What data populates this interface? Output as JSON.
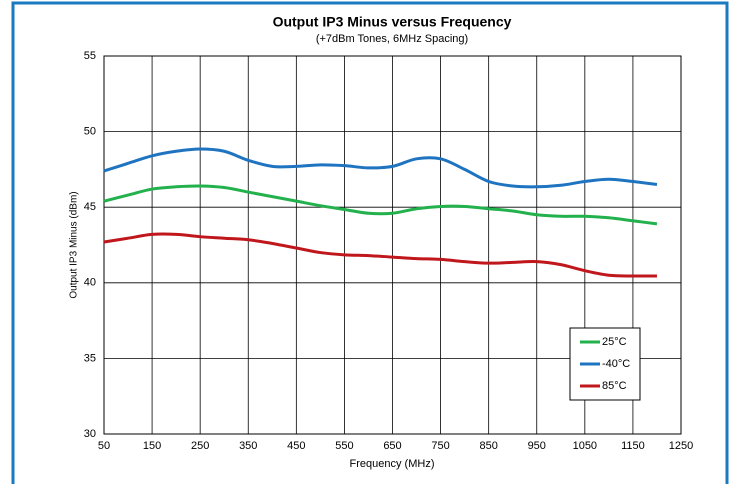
{
  "chart_data": {
    "type": "line",
    "title": "Output IP3 Minus versus Frequency",
    "subtitle": "(+7dBm Tones, 6MHz Spacing)",
    "x_label": "Frequency (MHz)",
    "y_label": "Output IP3 Minus (dBm)",
    "x": [
      50,
      100,
      150,
      200,
      250,
      300,
      350,
      400,
      450,
      500,
      550,
      600,
      650,
      700,
      750,
      800,
      850,
      900,
      950,
      1000,
      1050,
      1100,
      1150,
      1200
    ],
    "series": [
      {
        "name": "25°C",
        "color": "#22b14c",
        "values": [
          45.4,
          45.8,
          46.2,
          46.35,
          46.4,
          46.3,
          46.0,
          45.7,
          45.4,
          45.1,
          44.85,
          44.6,
          44.6,
          44.9,
          45.05,
          45.05,
          44.9,
          44.75,
          44.5,
          44.4,
          44.4,
          44.3,
          44.1,
          43.9
        ]
      },
      {
        "name": "-40°C",
        "color": "#1f74c1",
        "values": [
          47.4,
          47.9,
          48.4,
          48.7,
          48.85,
          48.7,
          48.1,
          47.7,
          47.7,
          47.8,
          47.75,
          47.6,
          47.7,
          48.2,
          48.2,
          47.5,
          46.7,
          46.4,
          46.35,
          46.45,
          46.7,
          46.85,
          46.7,
          46.5
        ]
      },
      {
        "name": "85°C",
        "color": "#c0171c",
        "values": [
          42.7,
          42.95,
          43.2,
          43.2,
          43.05,
          42.95,
          42.85,
          42.6,
          42.3,
          42.0,
          41.85,
          41.8,
          41.7,
          41.6,
          41.55,
          41.4,
          41.3,
          41.35,
          41.4,
          41.2,
          40.8,
          40.5,
          40.45,
          40.45
        ]
      }
    ],
    "xlim": [
      50,
      1250
    ],
    "xticks": [
      50,
      150,
      250,
      350,
      450,
      550,
      650,
      750,
      850,
      950,
      1050,
      1150,
      1250
    ],
    "ylim": [
      30,
      55
    ],
    "yticks": [
      30,
      35,
      40,
      45,
      50,
      55
    ],
    "grid": true,
    "legend": "lower right"
  }
}
